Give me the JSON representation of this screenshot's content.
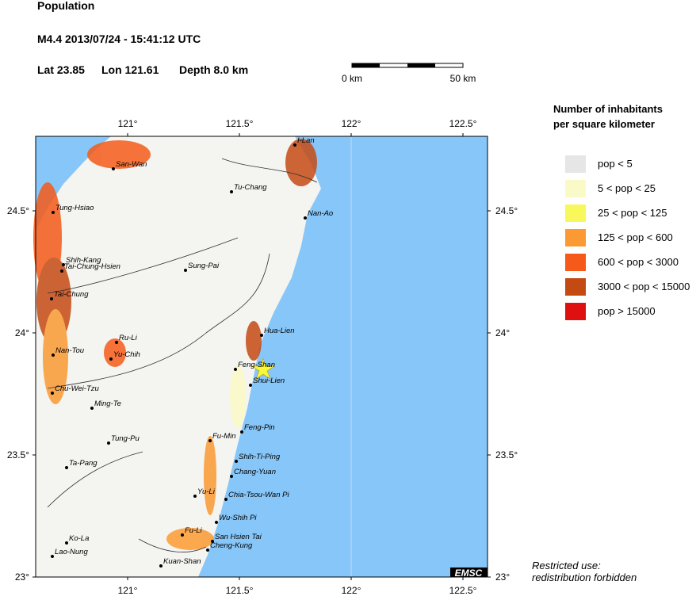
{
  "header": {
    "title": "Population",
    "event": "M4.4  2013/07/24 - 15:41:12 UTC",
    "lat": "Lat 23.85",
    "lon": "Lon 121.61",
    "depth": "Depth  8.0 km"
  },
  "scale_bar": {
    "start": "0 km",
    "end": "50 km"
  },
  "map": {
    "xticks": [
      {
        "value": 121,
        "label": "121°"
      },
      {
        "value": 121.5,
        "label": "121.5°"
      },
      {
        "value": 122,
        "label": "122°"
      },
      {
        "value": 122.5,
        "label": "122.5°"
      }
    ],
    "yticks": [
      {
        "value": 23,
        "label": "23°"
      },
      {
        "value": 23.5,
        "label": "23.5°"
      },
      {
        "value": 24,
        "label": "24°"
      },
      {
        "value": 24.5,
        "label": "24.5°"
      }
    ],
    "places": [
      "I-Lan",
      "San-Wan",
      "Tu-Chang",
      "Nan-Ao",
      "Tung-Hsiao",
      "Shih-Kang",
      "Tai-Chung-Hsien",
      "Sung-Pai",
      "Tai-Chung",
      "Ru-Li",
      "Hua-Lien",
      "Nan-Tou",
      "Yu-Chih",
      "Feng-Shan",
      "Shui-Lien",
      "Chu-Wei-Tzu",
      "Ming-Te",
      "Feng-Pin",
      "Fu-Min",
      "Tung-Pu",
      "Shih-Ti-Ping",
      "Ta-Pang",
      "Chang-Yuan",
      "Yu-Li",
      "Chia-Tsou-Wan Pi",
      "Wu-Shih Pi",
      "Fu-Li",
      "San Hsien Tai",
      "Ko-La",
      "Cheng-Kung",
      "Lao-Nung",
      "Kuan-Shan"
    ],
    "logo": "EMSC"
  },
  "legend": {
    "title": [
      "Number of inhabitants",
      "per square kilometer"
    ],
    "items": [
      {
        "label": "pop < 5",
        "color": "#e6e6e6"
      },
      {
        "label": "5 < pop < 25",
        "color": "#fafac8"
      },
      {
        "label": "25 < pop < 125",
        "color": "#f8f85a"
      },
      {
        "label": "125 < pop < 600",
        "color": "#fb9a32"
      },
      {
        "label": "600 < pop < 3000",
        "color": "#f55a1a"
      },
      {
        "label": "3000 < pop < 15000",
        "color": "#c44a14"
      },
      {
        "label": "pop > 15000",
        "color": "#de1010"
      }
    ]
  },
  "footer": [
    "Restricted use:",
    "redistribution forbidden"
  ]
}
